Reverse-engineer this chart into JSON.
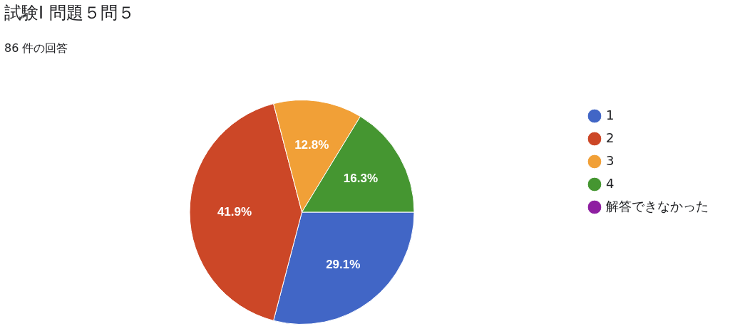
{
  "chart_data": {
    "type": "pie",
    "title": "試験Ⅰ 問題５問５",
    "subtitle": "86 件の回答",
    "categories": [
      "1",
      "2",
      "3",
      "4",
      "解答できなかった"
    ],
    "values": [
      29.1,
      41.9,
      12.8,
      16.3,
      0
    ],
    "colors": [
      "#4166c6",
      "#cc4727",
      "#f1a037",
      "#459631",
      "#8e1fa1"
    ],
    "value_labels": [
      "29.1%",
      "41.9%",
      "12.8%",
      "16.3%",
      null
    ],
    "legend": "right"
  }
}
